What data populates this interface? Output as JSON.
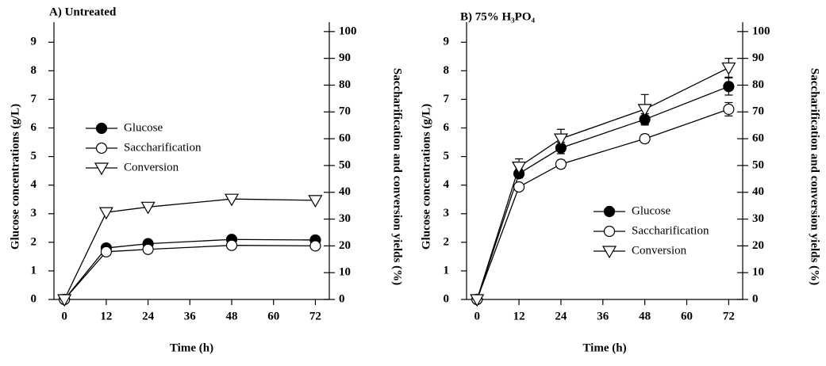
{
  "chart_data": [
    {
      "type": "line",
      "title": "A) Untreated",
      "xlabel": "Time (h)",
      "ylabel": "Glucose concentrations (g/L)",
      "y2label": "Saccharification and conversion yields (%)",
      "x": [
        0,
        12,
        24,
        48,
        72
      ],
      "xlim": [
        -3,
        76
      ],
      "xticks": [
        0,
        12,
        24,
        36,
        48,
        60,
        72
      ],
      "ylim": [
        0,
        9.7
      ],
      "yticks": [
        0,
        1,
        2,
        3,
        4,
        5,
        6,
        7,
        8,
        9
      ],
      "y2lim": [
        0,
        103.5
      ],
      "y2ticks": [
        0,
        10,
        20,
        30,
        40,
        50,
        60,
        70,
        80,
        90,
        100
      ],
      "legend": "center left",
      "series": [
        {
          "name": "Glucose",
          "color": "#000000",
          "fill": "#000000",
          "marker": "circle",
          "values": [
            0,
            1.8,
            1.95,
            2.1,
            2.08
          ]
        },
        {
          "name": "Saccharification",
          "color": "#000000",
          "fill": "#ffffff",
          "marker": "circle",
          "axis": "y2",
          "values": [
            0,
            17.8,
            18.7,
            20.2,
            20
          ]
        },
        {
          "name": "Conversion",
          "color": "#000000",
          "fill": "#ffffff",
          "marker": "triangle",
          "axis": "y2",
          "values": [
            0,
            32.5,
            34.5,
            37.5,
            37
          ]
        }
      ]
    },
    {
      "type": "line",
      "title": "B) 75% H₃PO₄",
      "xlabel": "Time (h)",
      "ylabel": "Glucose concentrations (g/L)",
      "y2label": "Saccharification and conversion yields (%)",
      "x": [
        0,
        12,
        24,
        48,
        72
      ],
      "xlim": [
        -3,
        76
      ],
      "xticks": [
        0,
        12,
        24,
        36,
        48,
        60,
        72
      ],
      "ylim": [
        0,
        9.7
      ],
      "yticks": [
        0,
        1,
        2,
        3,
        4,
        5,
        6,
        7,
        8,
        9
      ],
      "y2lim": [
        0,
        103.5
      ],
      "y2ticks": [
        0,
        10,
        20,
        30,
        40,
        50,
        60,
        70,
        80,
        90,
        100
      ],
      "legend": "center right",
      "series": [
        {
          "name": "Glucose",
          "color": "#000000",
          "fill": "#000000",
          "marker": "circle",
          "values": [
            0,
            4.4,
            5.3,
            6.3,
            7.45
          ],
          "errors": [
            0,
            0.15,
            0.2,
            0.2,
            0.3
          ]
        },
        {
          "name": "Saccharification",
          "color": "#000000",
          "fill": "#ffffff",
          "marker": "circle",
          "axis": "y2",
          "values": [
            0,
            42,
            50.5,
            60,
            71
          ],
          "errors": [
            0,
            1,
            1.5,
            1.5,
            2.5
          ]
        },
        {
          "name": "Conversion",
          "color": "#000000",
          "fill": "#ffffff",
          "marker": "triangle",
          "axis": "y2",
          "values": [
            0,
            49.5,
            60,
            71,
            86.5
          ],
          "errors": [
            0,
            3,
            3.5,
            5.5,
            3.5
          ]
        }
      ]
    }
  ]
}
